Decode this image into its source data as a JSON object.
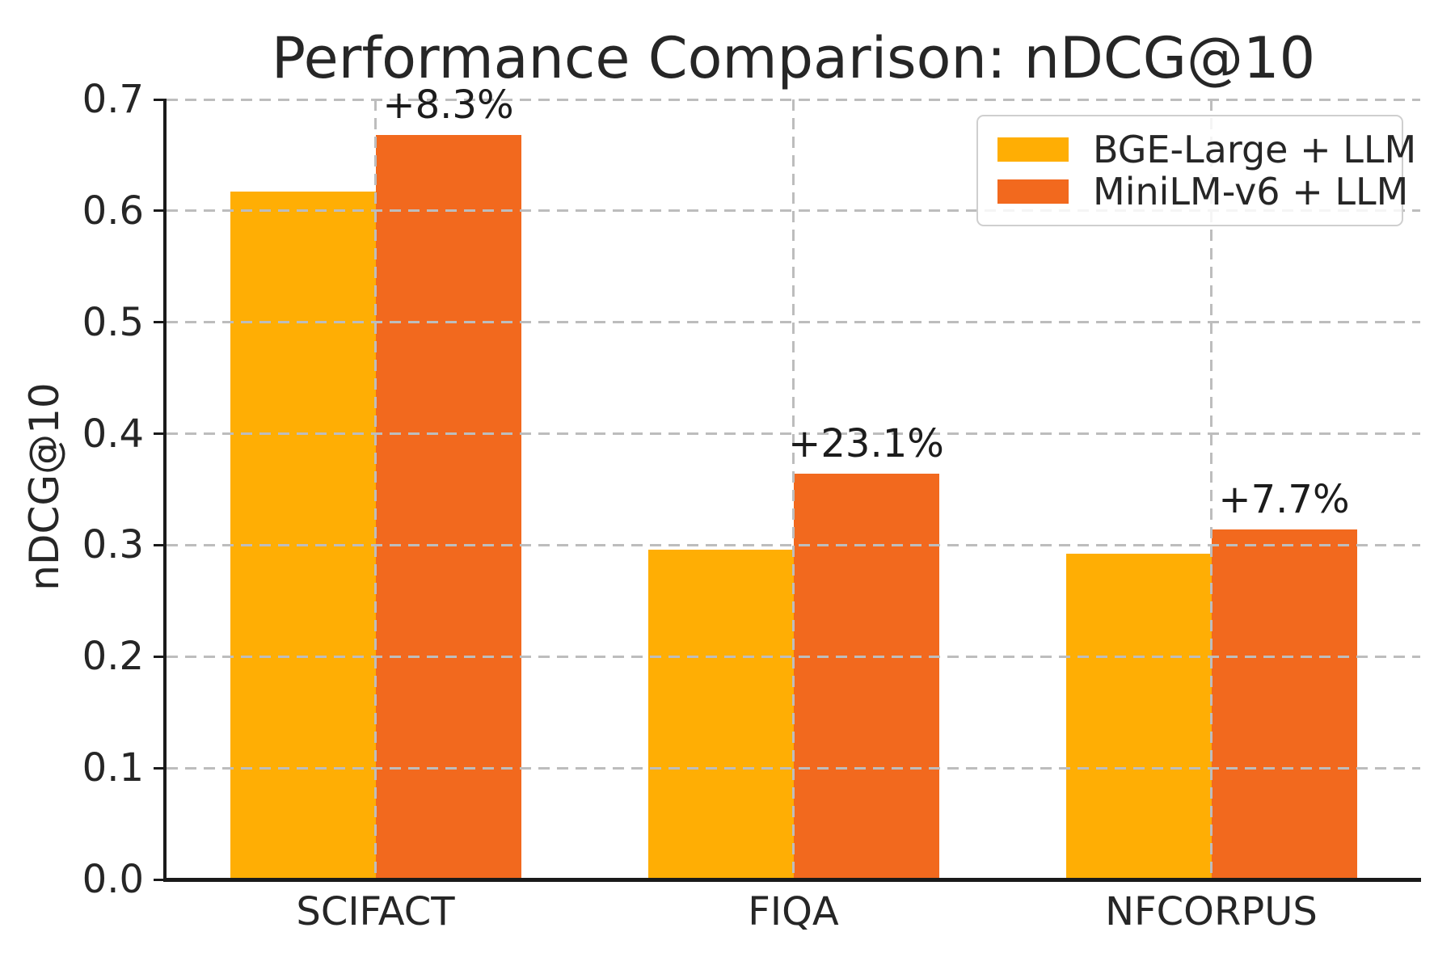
{
  "chart_data": {
    "type": "bar",
    "title": "Performance Comparison: nDCG@10",
    "xlabel": "",
    "ylabel": "nDCG@10",
    "categories": [
      "SCIFACT",
      "FIQA",
      "NFCORPUS"
    ],
    "series": [
      {
        "name": "BGE-Large + LLM",
        "color": "#FFAE04",
        "values": [
          0.617,
          0.296,
          0.292
        ]
      },
      {
        "name": "MiniLM-v6 + LLM",
        "color": "#F2691E",
        "values": [
          0.668,
          0.364,
          0.314
        ]
      }
    ],
    "annotations": [
      {
        "category": "SCIFACT",
        "series": "MiniLM-v6 + LLM",
        "label": "+8.3%"
      },
      {
        "category": "FIQA",
        "series": "MiniLM-v6 + LLM",
        "label": "+23.1%"
      },
      {
        "category": "NFCORPUS",
        "series": "MiniLM-v6 + LLM",
        "label": "+7.7%"
      }
    ],
    "ylim": [
      0,
      0.7
    ],
    "yticks": [
      "0.0",
      "0.1",
      "0.2",
      "0.3",
      "0.4",
      "0.5",
      "0.6",
      "0.7"
    ],
    "bar_width_fraction": 0.35,
    "grid": {
      "on": true,
      "style": "dashed",
      "color": "#bdbdbd",
      "axes": "both"
    },
    "legend": {
      "position": "upper right",
      "entries": [
        "BGE-Large + LLM",
        "MiniLM-v6 + LLM"
      ]
    }
  },
  "colors": {
    "background": "#ffffff",
    "text": "#262626",
    "axis": "#1a1a1a",
    "grid": "#bdbdbd",
    "legend_border": "#cfcfcf"
  }
}
